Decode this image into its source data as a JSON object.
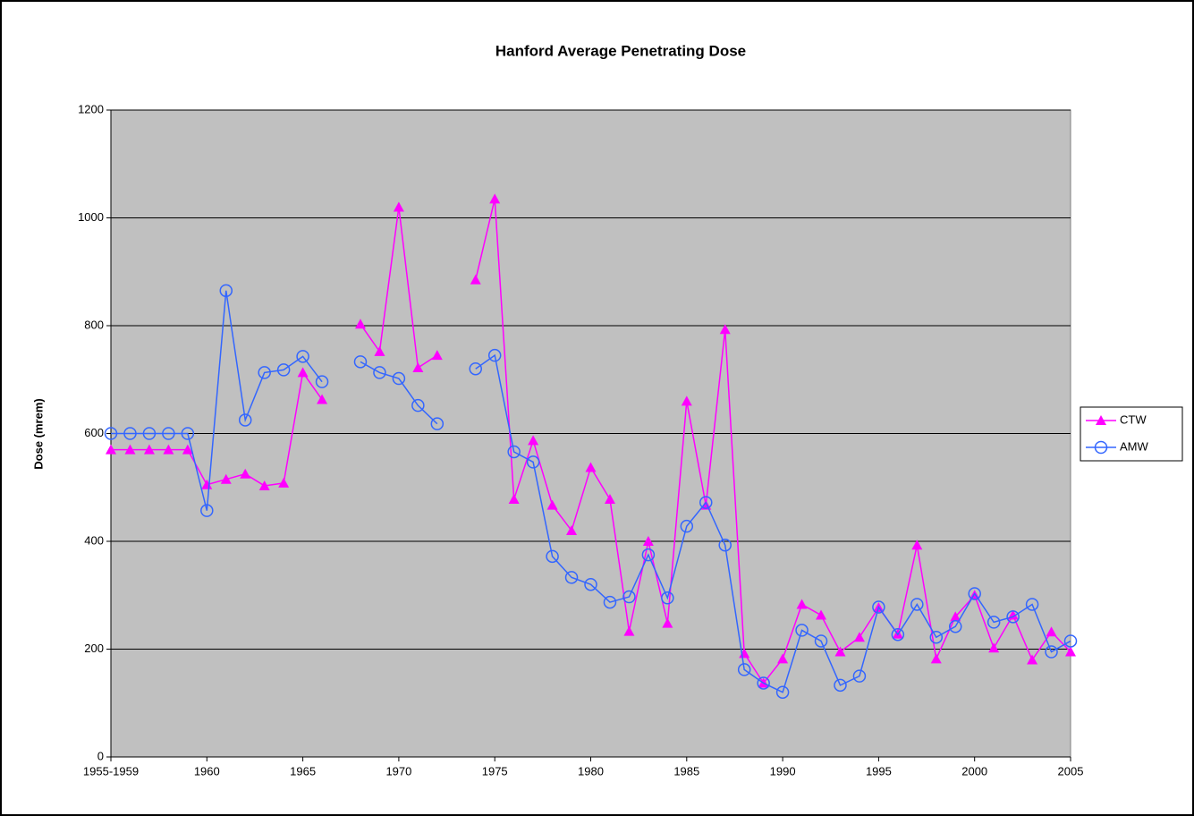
{
  "chart_data": {
    "type": "line",
    "title": "Hanford Average Penetrating Dose",
    "y_label": "Dose (mrem)",
    "x": [
      1955,
      1956,
      1957,
      1958,
      1959,
      1960,
      1961,
      1962,
      1963,
      1964,
      1965,
      1966,
      1967,
      1968,
      1969,
      1970,
      1971,
      1972,
      1973,
      1974,
      1975,
      1976,
      1977,
      1978,
      1979,
      1980,
      1981,
      1982,
      1983,
      1984,
      1985,
      1986,
      1987,
      1988,
      1989,
      1990,
      1991,
      1992,
      1993,
      1994,
      1995,
      1996,
      1997,
      1998,
      1999,
      2000,
      2001,
      2002,
      2003,
      2004,
      2005
    ],
    "series": [
      {
        "name": "CTW",
        "color": "#ff00ff",
        "marker": "triangle",
        "values": [
          570,
          570,
          570,
          570,
          570,
          505,
          515,
          525,
          503,
          508,
          713,
          663,
          null,
          803,
          752,
          1020,
          722,
          745,
          null,
          885,
          1035,
          478,
          587,
          467,
          420,
          537,
          478,
          233,
          400,
          248,
          660,
          467,
          793,
          192,
          137,
          182,
          283,
          263,
          195,
          222,
          277,
          228,
          393,
          182,
          260,
          300,
          202,
          263,
          180,
          232,
          195
        ]
      },
      {
        "name": "AMW",
        "color": "#3366ff",
        "marker": "circle",
        "values": [
          600,
          600,
          600,
          600,
          600,
          457,
          865,
          625,
          713,
          718,
          743,
          696,
          null,
          733,
          713,
          702,
          652,
          618,
          null,
          720,
          745,
          566,
          547,
          372,
          333,
          320,
          287,
          297,
          375,
          295,
          428,
          472,
          393,
          162,
          137,
          120,
          235,
          215,
          133,
          150,
          278,
          227,
          283,
          222,
          242,
          303,
          250,
          260,
          283,
          195,
          215
        ]
      }
    ],
    "xlim": [
      1955,
      2005
    ],
    "xticks": [
      {
        "value": 1955,
        "label": "1955-1959"
      },
      1960,
      1965,
      1970,
      1975,
      1980,
      1985,
      1990,
      1995,
      2000,
      2005
    ],
    "ylim": [
      0,
      1200
    ],
    "yticks": [
      0,
      200,
      400,
      600,
      800,
      1000,
      1200
    ],
    "grid": true,
    "legend": "right",
    "plot_background": "#c0c0c0"
  }
}
